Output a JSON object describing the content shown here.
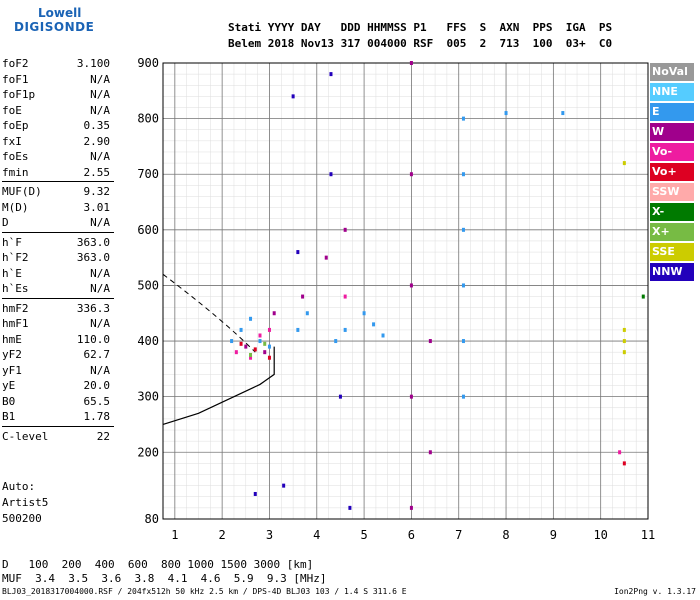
{
  "logo": {
    "line1": "Lowell",
    "line2": "DIGISONDE"
  },
  "header": {
    "line1": "Stati YYYY DAY   DDD HHMMSS P1   FFS  S  AXN  PPS  IGA  PS",
    "line2": "Belem 2018 Nov13 317 004000 RSF  005  2  713  100  03+  C0"
  },
  "params": [
    {
      "name": "foF2",
      "value": "3.100"
    },
    {
      "name": "foF1",
      "value": "N/A"
    },
    {
      "name": "foF1p",
      "value": "N/A"
    },
    {
      "name": "foE",
      "value": "N/A"
    },
    {
      "name": "foEp",
      "value": "0.35"
    },
    {
      "name": "fxI",
      "value": "2.90"
    },
    {
      "name": "foEs",
      "value": "N/A"
    },
    {
      "name": "fmin",
      "value": "2.55"
    },
    {
      "name": "MUF(D)",
      "value": "9.32"
    },
    {
      "name": "M(D)",
      "value": "3.01"
    },
    {
      "name": "D",
      "value": "N/A"
    },
    {
      "name": "h`F",
      "value": "363.0"
    },
    {
      "name": "h`F2",
      "value": "363.0"
    },
    {
      "name": "h`E",
      "value": "N/A"
    },
    {
      "name": "h`Es",
      "value": "N/A"
    },
    {
      "name": "hmF2",
      "value": "336.3"
    },
    {
      "name": "hmF1",
      "value": "N/A"
    },
    {
      "name": "hmE",
      "value": "110.0"
    },
    {
      "name": "yF2",
      "value": "62.7"
    },
    {
      "name": "yF1",
      "value": "N/A"
    },
    {
      "name": "yE",
      "value": "20.0"
    },
    {
      "name": "B0",
      "value": "65.5"
    },
    {
      "name": "B1",
      "value": "1.78"
    },
    {
      "name": "C-level",
      "value": "22"
    }
  ],
  "auto": {
    "line1": "Auto:",
    "line2": "Artist5",
    "line3": "500200"
  },
  "legend": [
    {
      "label": "NoVal",
      "color": "#999999"
    },
    {
      "label": "NNE",
      "color": "#55ccff"
    },
    {
      "label": "E",
      "color": "#3399ee"
    },
    {
      "label": "W",
      "color": "#a0008c"
    },
    {
      "label": "Vo-",
      "color": "#ee1ca0"
    },
    {
      "label": "Vo+",
      "color": "#dd0022"
    },
    {
      "label": "SSW",
      "color": "#ffaaaa"
    },
    {
      "label": "X-",
      "color": "#007a00"
    },
    {
      "label": "X+",
      "color": "#77bb44"
    },
    {
      "label": "SSE",
      "color": "#cccc00"
    },
    {
      "label": "NNW",
      "color": "#2200bb"
    }
  ],
  "bottom": {
    "d_label": "D",
    "d_values": "   100  200  400  600  800 1000 1500 3000 [km]",
    "muf_label": "MUF",
    "muf_values": "  3.4  3.5  3.6  3.8  4.1  4.6  5.9  9.3 [MHz]"
  },
  "footer": "BLJ03_2018317004000.RSF / 204fx512h 50 kHz 2.5 km / DPS-4D BLJ03 103 / 1.4 S 311.6 E",
  "version": "Ion2Png v. 1.3.17",
  "chart_data": {
    "type": "scatter",
    "x_ticks": [
      "1",
      "2",
      "3",
      "4",
      "5",
      "6",
      "7",
      "8",
      "9",
      "10",
      "11"
    ],
    "y_ticks": [
      "80",
      "200",
      "300",
      "400",
      "500",
      "600",
      "700",
      "800",
      "900"
    ],
    "xlim": [
      0.75,
      11.0
    ],
    "ylim": [
      80,
      900
    ],
    "grid": true,
    "series": [
      {
        "name": "E",
        "color": "#3399ee",
        "points": [
          [
            2.2,
            400
          ],
          [
            2.4,
            420
          ],
          [
            2.6,
            440
          ],
          [
            2.8,
            400
          ],
          [
            3.0,
            390
          ],
          [
            3.6,
            420
          ],
          [
            3.8,
            450
          ],
          [
            4.4,
            400
          ],
          [
            4.6,
            420
          ],
          [
            5.0,
            450
          ],
          [
            5.2,
            430
          ],
          [
            5.4,
            410
          ],
          [
            7.1,
            300
          ],
          [
            7.1,
            400
          ],
          [
            7.1,
            500
          ],
          [
            7.1,
            600
          ],
          [
            7.1,
            700
          ],
          [
            7.1,
            800
          ],
          [
            8.0,
            810
          ],
          [
            9.2,
            810
          ]
        ]
      },
      {
        "name": "W",
        "color": "#a0008c",
        "points": [
          [
            2.5,
            390
          ],
          [
            2.9,
            380
          ],
          [
            3.1,
            450
          ],
          [
            3.7,
            480
          ],
          [
            4.2,
            550
          ],
          [
            4.6,
            600
          ],
          [
            6.0,
            900
          ],
          [
            6.0,
            700
          ],
          [
            6.0,
            500
          ],
          [
            6.0,
            300
          ],
          [
            6.0,
            100
          ],
          [
            6.4,
            200
          ],
          [
            6.4,
            400
          ]
        ]
      },
      {
        "name": "Vo-",
        "color": "#ee1ca0",
        "points": [
          [
            2.3,
            380
          ],
          [
            2.6,
            370
          ],
          [
            2.8,
            410
          ],
          [
            3.0,
            420
          ],
          [
            4.6,
            480
          ],
          [
            10.4,
            200
          ]
        ]
      },
      {
        "name": "Vo+",
        "color": "#dd0022",
        "points": [
          [
            2.4,
            395
          ],
          [
            2.7,
            385
          ],
          [
            3.0,
            370
          ],
          [
            10.5,
            180
          ]
        ]
      },
      {
        "name": "NNW",
        "color": "#2200bb",
        "points": [
          [
            3.5,
            840
          ],
          [
            4.3,
            880
          ],
          [
            4.3,
            700
          ],
          [
            4.5,
            300
          ],
          [
            3.3,
            140
          ],
          [
            4.7,
            100
          ],
          [
            2.7,
            125
          ],
          [
            3.6,
            560
          ]
        ]
      },
      {
        "name": "SSE",
        "color": "#cccc00",
        "points": [
          [
            10.5,
            420
          ],
          [
            10.5,
            400
          ],
          [
            10.5,
            380
          ],
          [
            10.5,
            720
          ]
        ]
      },
      {
        "name": "X+",
        "color": "#77bb44",
        "points": [
          [
            2.6,
            375
          ],
          [
            2.9,
            395
          ]
        ]
      },
      {
        "name": "X-",
        "color": "#007a00",
        "points": [
          [
            10.9,
            480
          ]
        ]
      }
    ]
  }
}
